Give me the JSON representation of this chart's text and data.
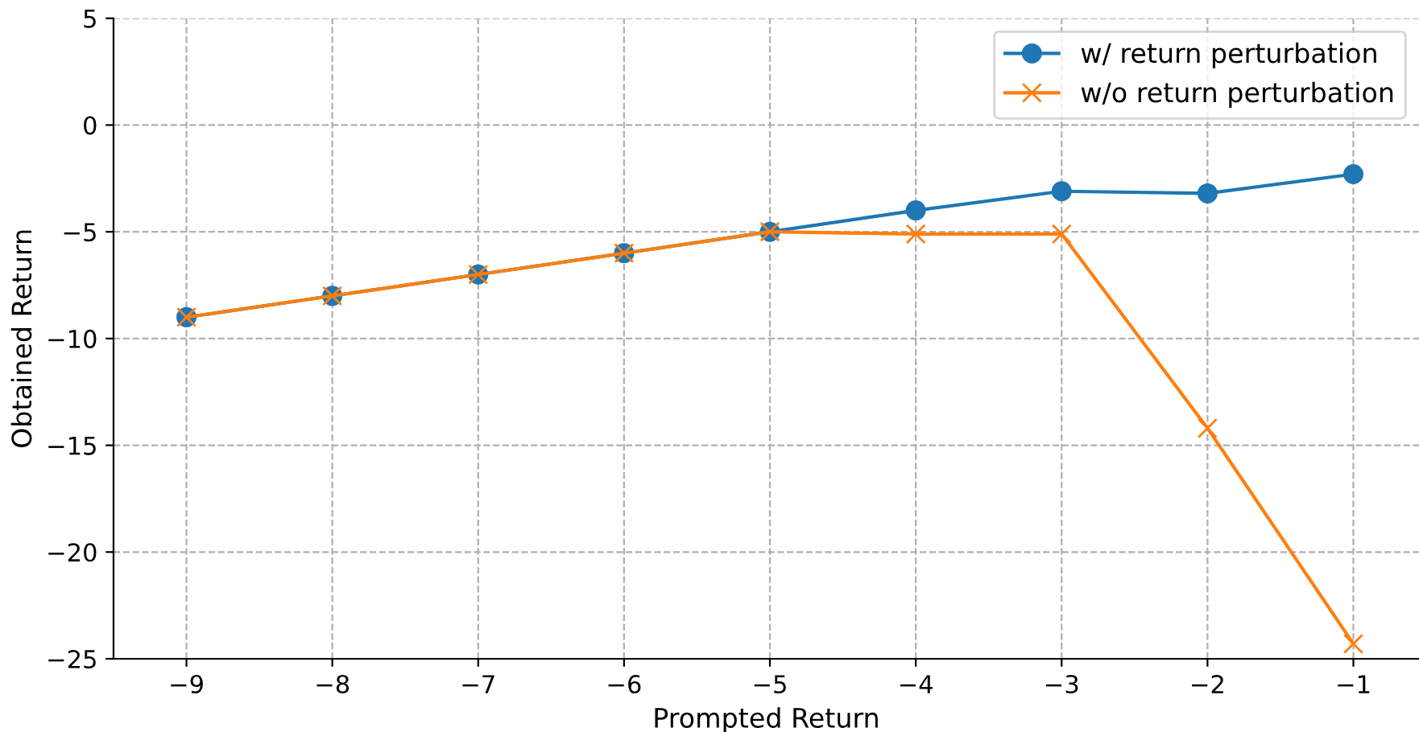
{
  "chart_data": {
    "type": "line",
    "xlabel": "Prompted Return",
    "ylabel": "Obtained Return",
    "x": [
      -9,
      -8,
      -7,
      -6,
      -5,
      -4,
      -3,
      -2,
      -1
    ],
    "series": [
      {
        "name": "w/ return perturbation",
        "color": "#1f77b4",
        "marker": "circle",
        "values": [
          -9.0,
          -8.0,
          -7.0,
          -6.0,
          -5.0,
          -4.0,
          -3.1,
          -3.2,
          -2.3
        ]
      },
      {
        "name": "w/o return perturbation",
        "color": "#ff7f0e",
        "marker": "cross",
        "values": [
          -9.0,
          -8.0,
          -7.0,
          -6.0,
          -5.0,
          -5.1,
          -5.1,
          -14.2,
          -24.3
        ]
      }
    ],
    "xlim": [
      -9.5,
      -0.55
    ],
    "ylim": [
      -25,
      5
    ],
    "xticks": [
      {
        "value": -9,
        "label": "−9"
      },
      {
        "value": -8,
        "label": "−8"
      },
      {
        "value": -7,
        "label": "−7"
      },
      {
        "value": -6,
        "label": "−6"
      },
      {
        "value": -5,
        "label": "−5"
      },
      {
        "value": -4,
        "label": "−4"
      },
      {
        "value": -3,
        "label": "−3"
      },
      {
        "value": -2,
        "label": "−2"
      },
      {
        "value": -1,
        "label": "−1"
      }
    ],
    "yticks": [
      {
        "value": -25,
        "label": "−25"
      },
      {
        "value": -20,
        "label": "−20"
      },
      {
        "value": -15,
        "label": "−15"
      },
      {
        "value": -10,
        "label": "−10"
      },
      {
        "value": -5,
        "label": "−5"
      },
      0,
      5
    ],
    "grid": true,
    "legend": "top right",
    "line_style": "solid"
  }
}
